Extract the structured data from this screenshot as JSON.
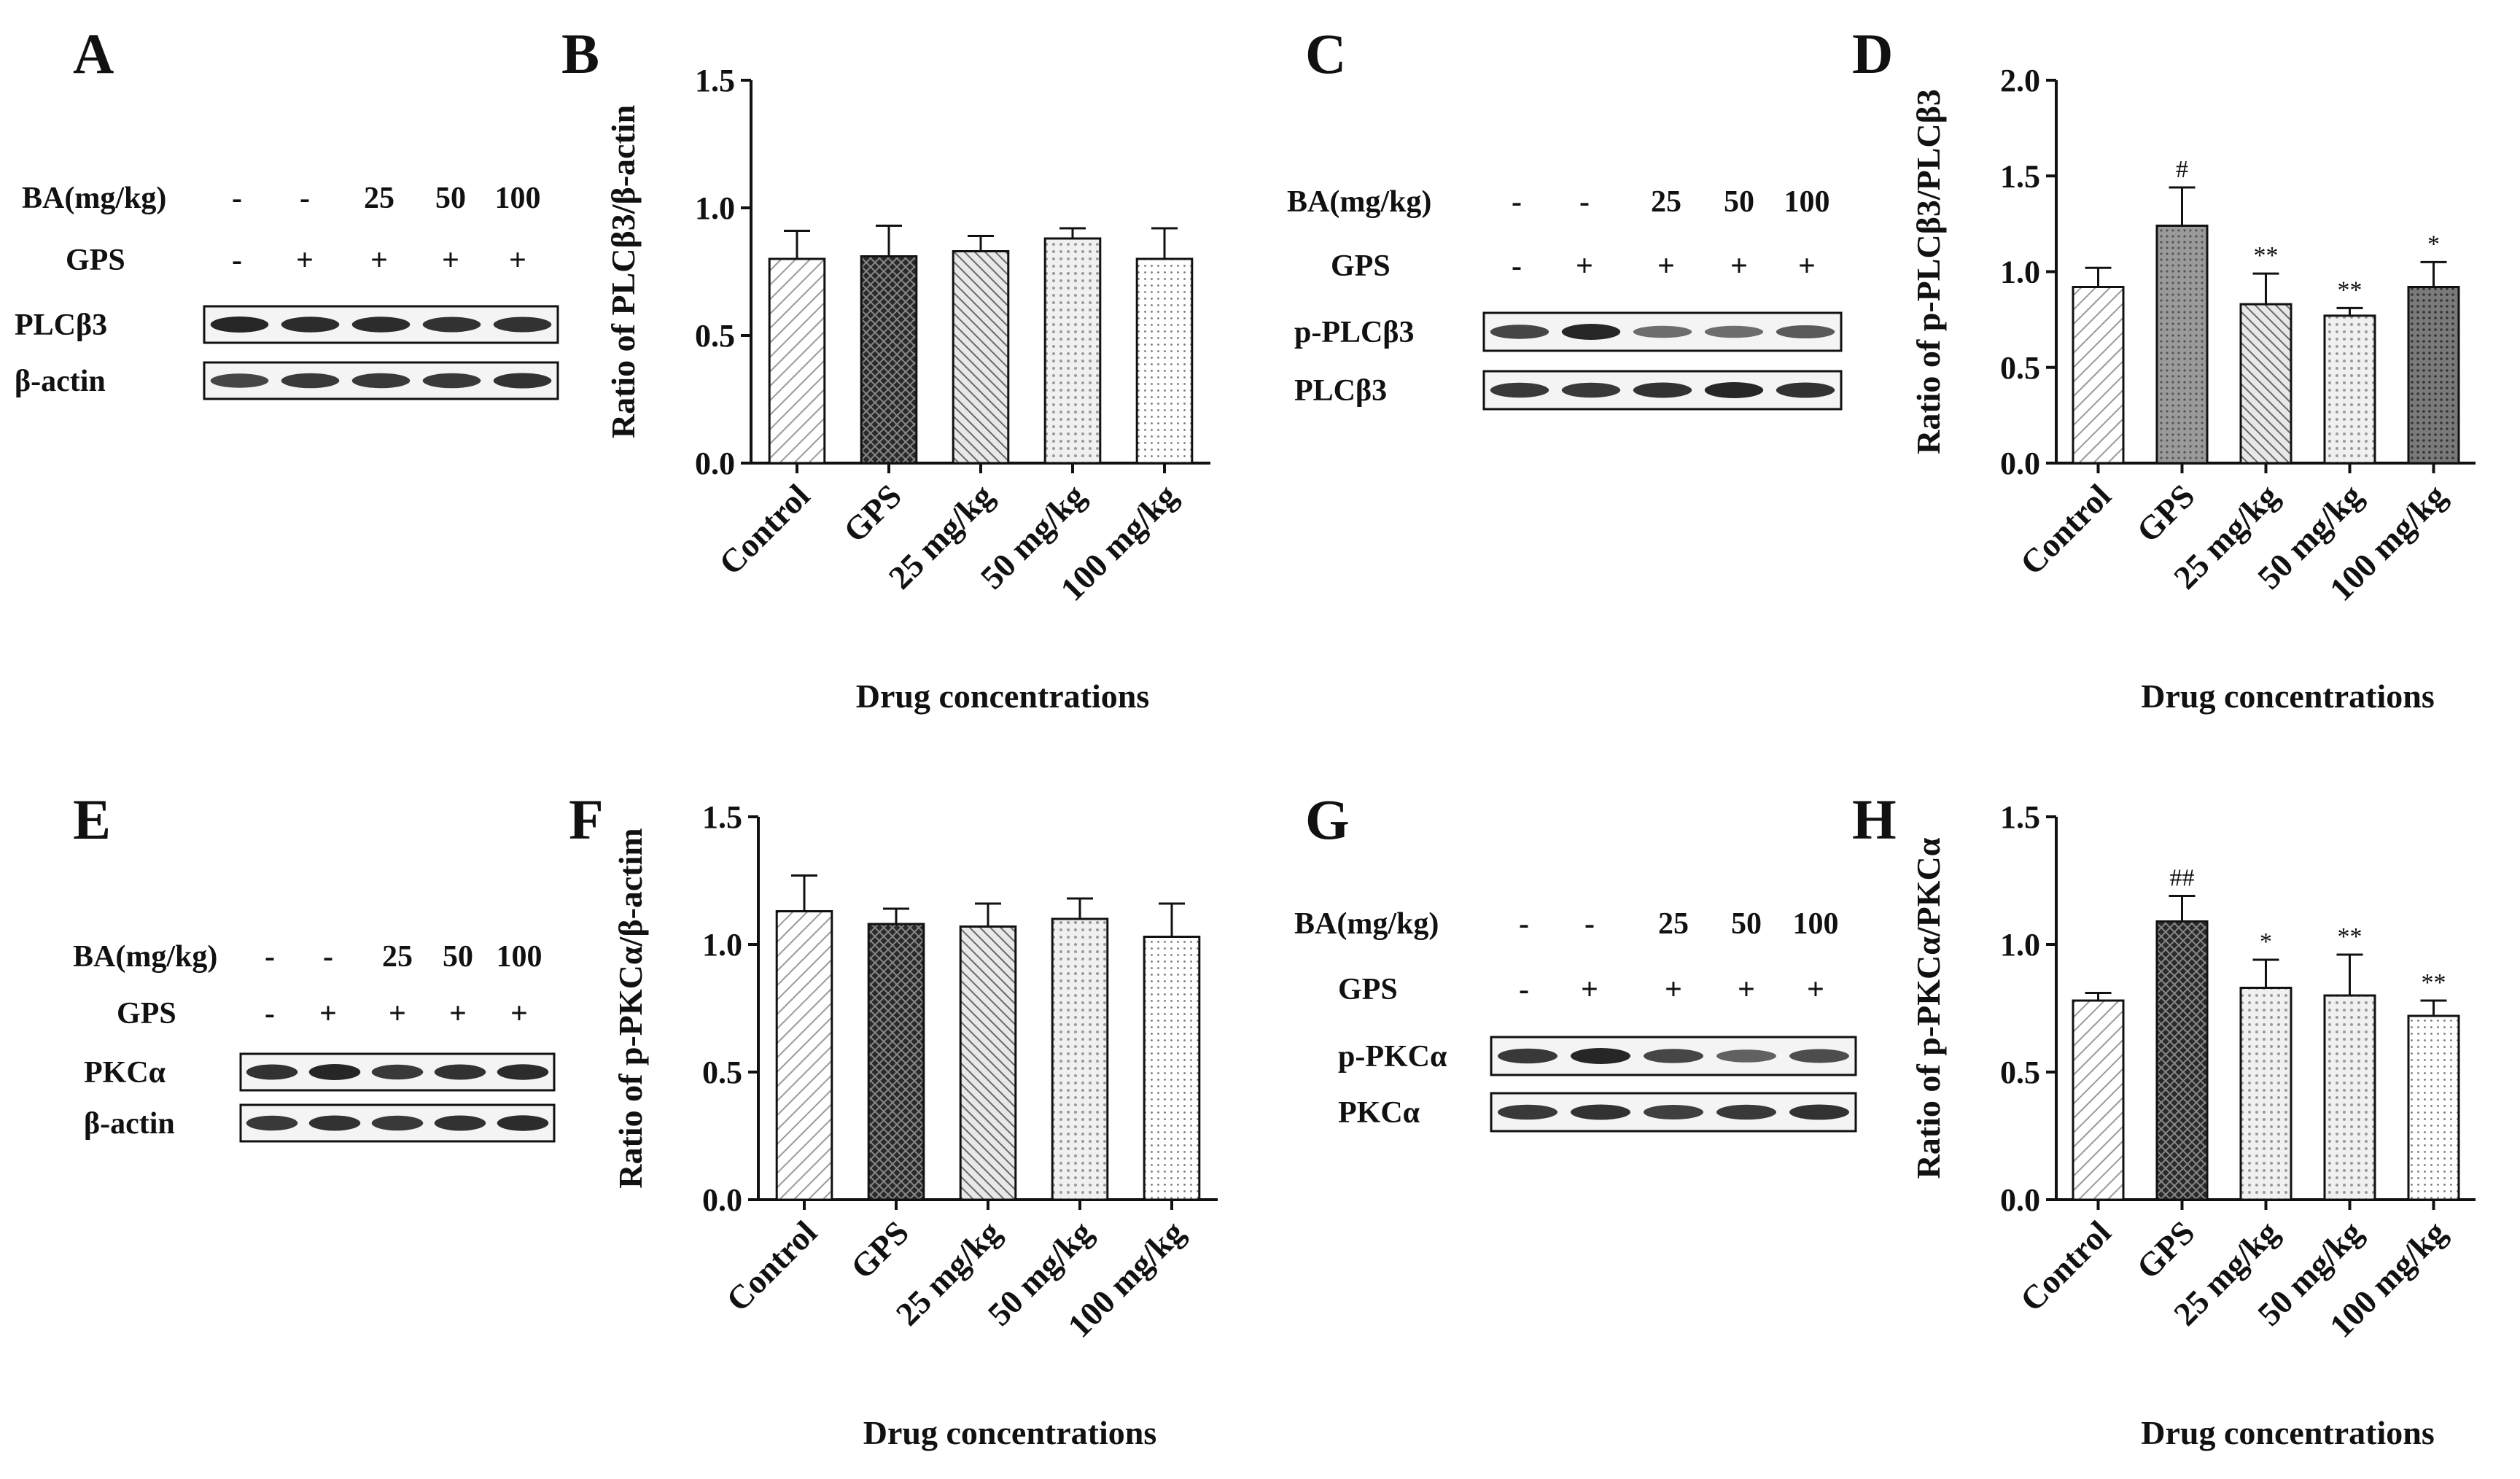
{
  "figure": {
    "panel_letters": [
      "A",
      "B",
      "C",
      "D",
      "E",
      "F",
      "G",
      "H"
    ]
  },
  "blots": [
    {
      "id": "A",
      "row_labels": [
        "BA(mg/kg)",
        "GPS"
      ],
      "ba_doses": [
        "-",
        "-",
        "25",
        "50",
        "100"
      ],
      "gps": [
        "-",
        "+",
        "+",
        "+",
        "+"
      ],
      "bands": [
        {
          "label": "PLCβ3",
          "intensity": [
            1.0,
            0.95,
            0.95,
            0.9,
            0.9
          ]
        },
        {
          "label": "β-actin",
          "intensity": [
            0.75,
            0.85,
            0.85,
            0.85,
            0.9
          ]
        }
      ]
    },
    {
      "id": "C",
      "row_labels": [
        "BA(mg/kg)",
        "GPS"
      ],
      "ba_doses": [
        "-",
        "-",
        "25",
        "50",
        "100"
      ],
      "gps": [
        "-",
        "+",
        "+",
        "+",
        "+"
      ],
      "bands": [
        {
          "label": "p-PLCβ3",
          "intensity": [
            0.75,
            1.0,
            0.45,
            0.45,
            0.6
          ]
        },
        {
          "label": "PLCβ3",
          "intensity": [
            0.85,
            0.85,
            0.9,
            1.0,
            0.9
          ]
        }
      ]
    },
    {
      "id": "E",
      "row_labels": [
        "BA(mg/kg)",
        "GPS"
      ],
      "ba_doses": [
        "-",
        "-",
        "25",
        "50",
        "100"
      ],
      "gps": [
        "-",
        "+",
        "+",
        "+",
        "+"
      ],
      "bands": [
        {
          "label": "PKCα",
          "intensity": [
            0.9,
            1.0,
            0.85,
            0.9,
            0.95
          ]
        },
        {
          "label": "β-actin",
          "intensity": [
            0.85,
            0.9,
            0.85,
            0.9,
            0.95
          ]
        }
      ]
    },
    {
      "id": "G",
      "row_labels": [
        "BA(mg/kg)",
        "GPS"
      ],
      "ba_doses": [
        "-",
        "-",
        "25",
        "50",
        "100"
      ],
      "gps": [
        "-",
        "+",
        "+",
        "+",
        "+"
      ],
      "bands": [
        {
          "label": "p-PKCα",
          "intensity": [
            0.85,
            1.0,
            0.75,
            0.55,
            0.7
          ]
        },
        {
          "label": "PKCα",
          "intensity": [
            0.85,
            0.9,
            0.8,
            0.85,
            0.9
          ]
        }
      ]
    }
  ],
  "chart_data": [
    {
      "id": "B",
      "type": "bar",
      "title": "",
      "categories": [
        "Control",
        "GPS",
        "25 mg/kg",
        "50 mg/kg",
        "100 mg/kg"
      ],
      "values": [
        0.8,
        0.81,
        0.83,
        0.88,
        0.8
      ],
      "errors": [
        0.11,
        0.12,
        0.06,
        0.04,
        0.12
      ],
      "significance": [
        "",
        "",
        "",
        "",
        ""
      ],
      "ylabel": "Ratio of PLCβ3/β-actin",
      "xlabel": "Drug concentrations",
      "ylim": [
        0,
        1.5
      ],
      "yticks": [
        "0.0",
        "0.5",
        "1.0",
        "1.5"
      ],
      "grid": false
    },
    {
      "id": "D",
      "type": "bar",
      "title": "",
      "categories": [
        "Control",
        "GPS",
        "25 mg/kg",
        "50 mg/kg",
        "100 mg/kg"
      ],
      "values": [
        0.92,
        1.24,
        0.83,
        0.77,
        0.92
      ],
      "errors": [
        0.1,
        0.2,
        0.16,
        0.04,
        0.13
      ],
      "significance": [
        "",
        "#",
        "**",
        "**",
        "*"
      ],
      "ylabel": "Ratio of p-PLCβ3/PLCβ3",
      "xlabel": "Drug concentrations",
      "ylim": [
        0,
        2.0
      ],
      "yticks": [
        "0.0",
        "0.5",
        "1.0",
        "1.5",
        "2.0"
      ],
      "grid": false
    },
    {
      "id": "F",
      "type": "bar",
      "title": "",
      "categories": [
        "Control",
        "GPS",
        "25 mg/kg",
        "50 mg/kg",
        "100 mg/kg"
      ],
      "values": [
        1.13,
        1.08,
        1.07,
        1.1,
        1.03
      ],
      "errors": [
        0.14,
        0.06,
        0.09,
        0.08,
        0.13
      ],
      "significance": [
        "",
        "",
        "",
        "",
        ""
      ],
      "ylabel": "Ratio of p-PKCα/β-actim",
      "xlabel": "Drug concentrations",
      "ylim": [
        0,
        1.5
      ],
      "yticks": [
        "0.0",
        "0.5",
        "1.0",
        "1.5"
      ],
      "grid": false
    },
    {
      "id": "H",
      "type": "bar",
      "title": "",
      "categories": [
        "Control",
        "GPS",
        "25 mg/kg",
        "50 mg/kg",
        "100 mg/kg"
      ],
      "values": [
        0.78,
        1.09,
        0.83,
        0.8,
        0.72
      ],
      "errors": [
        0.03,
        0.1,
        0.11,
        0.16,
        0.06
      ],
      "significance": [
        "",
        "##",
        "*",
        "**",
        "**"
      ],
      "ylabel": "Ratio of p-PKCα/PKCα",
      "xlabel": "Drug concentrations",
      "ylim": [
        0,
        1.5
      ],
      "yticks": [
        "0.0",
        "0.5",
        "1.0",
        "1.5"
      ],
      "grid": false
    }
  ],
  "style": {
    "bar_fills": [
      "hatch-light",
      "crosshatch-dark",
      "diagonal-medium",
      "dots-light",
      "dots-fine"
    ],
    "d_bar_fills": [
      "hatch-light",
      "dots-gray",
      "diagonal-medium",
      "dots-light",
      "dots-dark"
    ],
    "h_bar_fills": [
      "hatch-light",
      "crosshatch-dark",
      "dots-light",
      "dots-light",
      "dots-fine"
    ],
    "axis_color": "#111111",
    "band_color": "#1a1a1a"
  }
}
